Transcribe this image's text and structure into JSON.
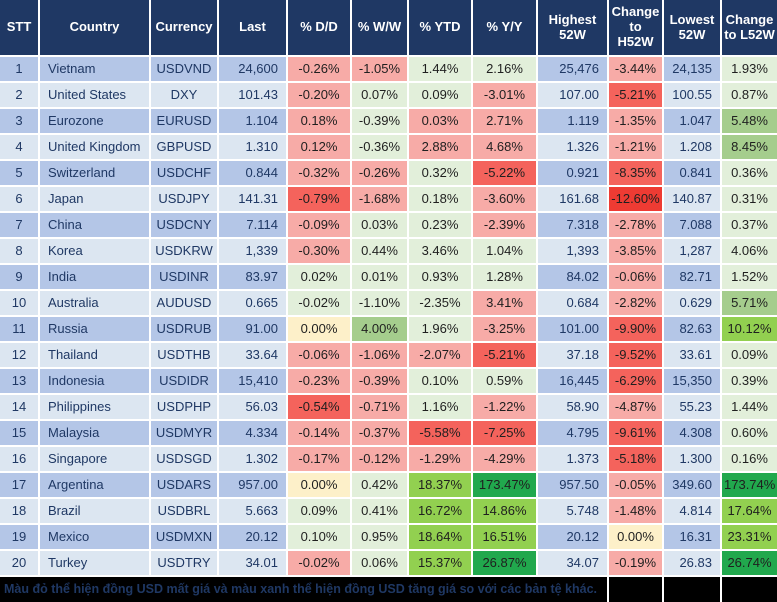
{
  "colors": {
    "header_bg": "#1F3864",
    "row_odd": "#B4C6E7",
    "row_even": "#DCE6F1",
    "r1": "#F7ABA7",
    "r2": "#F4635C",
    "r3": "#EE3B33",
    "y": "#FDF0C9",
    "g1": "#E2EFDA",
    "g2": "#A5CD8D",
    "g3": "#92D050",
    "g4": "#21A84D"
  },
  "table": {
    "columns": [
      {
        "key": "stt",
        "label": "STT",
        "align": "center"
      },
      {
        "key": "country",
        "label": "Country",
        "align": "left"
      },
      {
        "key": "currency",
        "label": "Currency",
        "align": "center"
      },
      {
        "key": "last",
        "label": "Last",
        "align": "right"
      },
      {
        "key": "dd",
        "label": "% D/D",
        "align": "center"
      },
      {
        "key": "ww",
        "label": "% W/W",
        "align": "center"
      },
      {
        "key": "ytd",
        "label": "% YTD",
        "align": "center"
      },
      {
        "key": "yy",
        "label": "% Y/Y",
        "align": "center"
      },
      {
        "key": "high",
        "label": "Highest 52W",
        "align": "right"
      },
      {
        "key": "chgH",
        "label": "Change to H52W",
        "align": "center"
      },
      {
        "key": "low",
        "label": "Lowest 52W",
        "align": "right"
      },
      {
        "key": "chgL",
        "label": "Change to L52W",
        "align": "center"
      }
    ],
    "rows": [
      {
        "stt": "1",
        "country": "Vietnam",
        "currency": "USDVND",
        "last": "24,600",
        "dd": {
          "v": "-0.26%",
          "c": "r1"
        },
        "ww": {
          "v": "-1.05%",
          "c": "r1"
        },
        "ytd": {
          "v": "1.44%",
          "c": "g1"
        },
        "yy": {
          "v": "2.16%",
          "c": "g1"
        },
        "high": "25,476",
        "chgH": {
          "v": "-3.44%",
          "c": "r1"
        },
        "low": "24,135",
        "chgL": {
          "v": "1.93%",
          "c": "g1"
        }
      },
      {
        "stt": "2",
        "country": "United States",
        "currency": "DXY",
        "last": "101.43",
        "dd": {
          "v": "-0.20%",
          "c": "r1"
        },
        "ww": {
          "v": "0.07%",
          "c": "g1"
        },
        "ytd": {
          "v": "0.09%",
          "c": "g1"
        },
        "yy": {
          "v": "-3.01%",
          "c": "r1"
        },
        "high": "107.00",
        "chgH": {
          "v": "-5.21%",
          "c": "r2"
        },
        "low": "100.55",
        "chgL": {
          "v": "0.87%",
          "c": "g1"
        }
      },
      {
        "stt": "3",
        "country": "Eurozone",
        "currency": "EURUSD",
        "last": "1.104",
        "dd": {
          "v": "0.18%",
          "c": "r1"
        },
        "ww": {
          "v": "-0.39%",
          "c": "g1"
        },
        "ytd": {
          "v": "0.03%",
          "c": "r1"
        },
        "yy": {
          "v": "2.71%",
          "c": "r1"
        },
        "high": "1.119",
        "chgH": {
          "v": "-1.35%",
          "c": "r1"
        },
        "low": "1.047",
        "chgL": {
          "v": "5.48%",
          "c": "g2"
        }
      },
      {
        "stt": "4",
        "country": "United Kingdom",
        "currency": "GBPUSD",
        "last": "1.310",
        "dd": {
          "v": "0.12%",
          "c": "r1"
        },
        "ww": {
          "v": "-0.36%",
          "c": "g1"
        },
        "ytd": {
          "v": "2.88%",
          "c": "r1"
        },
        "yy": {
          "v": "4.68%",
          "c": "r1"
        },
        "high": "1.326",
        "chgH": {
          "v": "-1.21%",
          "c": "r1"
        },
        "low": "1.208",
        "chgL": {
          "v": "8.45%",
          "c": "g2"
        }
      },
      {
        "stt": "5",
        "country": "Switzerland",
        "currency": "USDCHF",
        "last": "0.844",
        "dd": {
          "v": "-0.32%",
          "c": "r1"
        },
        "ww": {
          "v": "-0.26%",
          "c": "r1"
        },
        "ytd": {
          "v": "0.32%",
          "c": "g1"
        },
        "yy": {
          "v": "-5.22%",
          "c": "r2"
        },
        "high": "0.921",
        "chgH": {
          "v": "-8.35%",
          "c": "r2"
        },
        "low": "0.841",
        "chgL": {
          "v": "0.36%",
          "c": "g1"
        }
      },
      {
        "stt": "6",
        "country": "Japan",
        "currency": "USDJPY",
        "last": "141.31",
        "dd": {
          "v": "-0.79%",
          "c": "r2"
        },
        "ww": {
          "v": "-1.68%",
          "c": "r1"
        },
        "ytd": {
          "v": "0.18%",
          "c": "g1"
        },
        "yy": {
          "v": "-3.60%",
          "c": "r1"
        },
        "high": "161.68",
        "chgH": {
          "v": "-12.60%",
          "c": "r3"
        },
        "low": "140.87",
        "chgL": {
          "v": "0.31%",
          "c": "g1"
        }
      },
      {
        "stt": "7",
        "country": "China",
        "currency": "USDCNY",
        "last": "7.114",
        "dd": {
          "v": "-0.09%",
          "c": "r1"
        },
        "ww": {
          "v": "0.03%",
          "c": "g1"
        },
        "ytd": {
          "v": "0.23%",
          "c": "g1"
        },
        "yy": {
          "v": "-2.39%",
          "c": "r1"
        },
        "high": "7.318",
        "chgH": {
          "v": "-2.78%",
          "c": "r1"
        },
        "low": "7.088",
        "chgL": {
          "v": "0.37%",
          "c": "g1"
        }
      },
      {
        "stt": "8",
        "country": "Korea",
        "currency": "USDKRW",
        "last": "1,339",
        "dd": {
          "v": "-0.30%",
          "c": "r1"
        },
        "ww": {
          "v": "0.44%",
          "c": "g1"
        },
        "ytd": {
          "v": "3.46%",
          "c": "g1"
        },
        "yy": {
          "v": "1.04%",
          "c": "g1"
        },
        "high": "1,393",
        "chgH": {
          "v": "-3.85%",
          "c": "r1"
        },
        "low": "1,287",
        "chgL": {
          "v": "4.06%",
          "c": "g1"
        }
      },
      {
        "stt": "9",
        "country": "India",
        "currency": "USDINR",
        "last": "83.97",
        "dd": {
          "v": "0.02%",
          "c": "g1"
        },
        "ww": {
          "v": "0.01%",
          "c": "g1"
        },
        "ytd": {
          "v": "0.93%",
          "c": "g1"
        },
        "yy": {
          "v": "1.28%",
          "c": "g1"
        },
        "high": "84.02",
        "chgH": {
          "v": "-0.06%",
          "c": "r1"
        },
        "low": "82.71",
        "chgL": {
          "v": "1.52%",
          "c": "g1"
        }
      },
      {
        "stt": "10",
        "country": "Australia",
        "currency": "AUDUSD",
        "last": "0.665",
        "dd": {
          "v": "-0.02%",
          "c": "g1"
        },
        "ww": {
          "v": "-1.10%",
          "c": "g1"
        },
        "ytd": {
          "v": "-2.35%",
          "c": "g1"
        },
        "yy": {
          "v": "3.41%",
          "c": "r1"
        },
        "high": "0.684",
        "chgH": {
          "v": "-2.82%",
          "c": "r1"
        },
        "low": "0.629",
        "chgL": {
          "v": "5.71%",
          "c": "g2"
        }
      },
      {
        "stt": "11",
        "country": "Russia",
        "currency": "USDRUB",
        "last": "91.00",
        "dd": {
          "v": "0.00%",
          "c": "y"
        },
        "ww": {
          "v": "4.00%",
          "c": "g2"
        },
        "ytd": {
          "v": "1.96%",
          "c": "g1"
        },
        "yy": {
          "v": "-3.25%",
          "c": "r1"
        },
        "high": "101.00",
        "chgH": {
          "v": "-9.90%",
          "c": "r2"
        },
        "low": "82.63",
        "chgL": {
          "v": "10.12%",
          "c": "g3"
        }
      },
      {
        "stt": "12",
        "country": "Thailand",
        "currency": "USDTHB",
        "last": "33.64",
        "dd": {
          "v": "-0.06%",
          "c": "r1"
        },
        "ww": {
          "v": "-1.06%",
          "c": "r1"
        },
        "ytd": {
          "v": "-2.07%",
          "c": "r1"
        },
        "yy": {
          "v": "-5.21%",
          "c": "r2"
        },
        "high": "37.18",
        "chgH": {
          "v": "-9.52%",
          "c": "r2"
        },
        "low": "33.61",
        "chgL": {
          "v": "0.09%",
          "c": "g1"
        }
      },
      {
        "stt": "13",
        "country": "Indonesia",
        "currency": "USDIDR",
        "last": "15,410",
        "dd": {
          "v": "-0.23%",
          "c": "r1"
        },
        "ww": {
          "v": "-0.39%",
          "c": "r1"
        },
        "ytd": {
          "v": "0.10%",
          "c": "g1"
        },
        "yy": {
          "v": "0.59%",
          "c": "g1"
        },
        "high": "16,445",
        "chgH": {
          "v": "-6.29%",
          "c": "r2"
        },
        "low": "15,350",
        "chgL": {
          "v": "0.39%",
          "c": "g1"
        }
      },
      {
        "stt": "14",
        "country": "Philippines",
        "currency": "USDPHP",
        "last": "56.03",
        "dd": {
          "v": "-0.54%",
          "c": "r2"
        },
        "ww": {
          "v": "-0.71%",
          "c": "r1"
        },
        "ytd": {
          "v": "1.16%",
          "c": "g1"
        },
        "yy": {
          "v": "-1.22%",
          "c": "r1"
        },
        "high": "58.90",
        "chgH": {
          "v": "-4.87%",
          "c": "r1"
        },
        "low": "55.23",
        "chgL": {
          "v": "1.44%",
          "c": "g1"
        }
      },
      {
        "stt": "15",
        "country": "Malaysia",
        "currency": "USDMYR",
        "last": "4.334",
        "dd": {
          "v": "-0.14%",
          "c": "r1"
        },
        "ww": {
          "v": "-0.37%",
          "c": "r1"
        },
        "ytd": {
          "v": "-5.58%",
          "c": "r2"
        },
        "yy": {
          "v": "-7.25%",
          "c": "r2"
        },
        "high": "4.795",
        "chgH": {
          "v": "-9.61%",
          "c": "r2"
        },
        "low": "4.308",
        "chgL": {
          "v": "0.60%",
          "c": "g1"
        }
      },
      {
        "stt": "16",
        "country": "Singapore",
        "currency": "USDSGD",
        "last": "1.302",
        "dd": {
          "v": "-0.17%",
          "c": "r1"
        },
        "ww": {
          "v": "-0.12%",
          "c": "r1"
        },
        "ytd": {
          "v": "-1.29%",
          "c": "r1"
        },
        "yy": {
          "v": "-4.29%",
          "c": "r1"
        },
        "high": "1.373",
        "chgH": {
          "v": "-5.18%",
          "c": "r2"
        },
        "low": "1.300",
        "chgL": {
          "v": "0.16%",
          "c": "g1"
        }
      },
      {
        "stt": "17",
        "country": "Argentina",
        "currency": "USDARS",
        "last": "957.00",
        "dd": {
          "v": "0.00%",
          "c": "y"
        },
        "ww": {
          "v": "0.42%",
          "c": "g1"
        },
        "ytd": {
          "v": "18.37%",
          "c": "g3"
        },
        "yy": {
          "v": "173.47%",
          "c": "g4"
        },
        "high": "957.50",
        "chgH": {
          "v": "-0.05%",
          "c": "r1"
        },
        "low": "349.60",
        "chgL": {
          "v": "173.74%",
          "c": "g4"
        }
      },
      {
        "stt": "18",
        "country": "Brazil",
        "currency": "USDBRL",
        "last": "5.663",
        "dd": {
          "v": "0.09%",
          "c": "g1"
        },
        "ww": {
          "v": "0.41%",
          "c": "g1"
        },
        "ytd": {
          "v": "16.72%",
          "c": "g3"
        },
        "yy": {
          "v": "14.86%",
          "c": "g3"
        },
        "high": "5.748",
        "chgH": {
          "v": "-1.48%",
          "c": "r1"
        },
        "low": "4.814",
        "chgL": {
          "v": "17.64%",
          "c": "g3"
        }
      },
      {
        "stt": "19",
        "country": "Mexico",
        "currency": "USDMXN",
        "last": "20.12",
        "dd": {
          "v": "0.10%",
          "c": "g1"
        },
        "ww": {
          "v": "0.95%",
          "c": "g1"
        },
        "ytd": {
          "v": "18.64%",
          "c": "g3"
        },
        "yy": {
          "v": "16.51%",
          "c": "g3"
        },
        "high": "20.12",
        "chgH": {
          "v": "0.00%",
          "c": "y"
        },
        "low": "16.31",
        "chgL": {
          "v": "23.31%",
          "c": "g3"
        }
      },
      {
        "stt": "20",
        "country": "Turkey",
        "currency": "USDTRY",
        "last": "34.01",
        "dd": {
          "v": "-0.02%",
          "c": "r1"
        },
        "ww": {
          "v": "0.06%",
          "c": "g1"
        },
        "ytd": {
          "v": "15.37%",
          "c": "g3"
        },
        "yy": {
          "v": "26.87%",
          "c": "g4"
        },
        "high": "34.07",
        "chgH": {
          "v": "-0.19%",
          "c": "r1"
        },
        "low": "26.83",
        "chgL": {
          "v": "26.74%",
          "c": "g4"
        }
      }
    ]
  },
  "footer": {
    "note": "Màu đỏ thể hiện đồng USD mất giá và màu xanh thể hiện đồng USD tăng giá so với các bản tệ khác."
  }
}
